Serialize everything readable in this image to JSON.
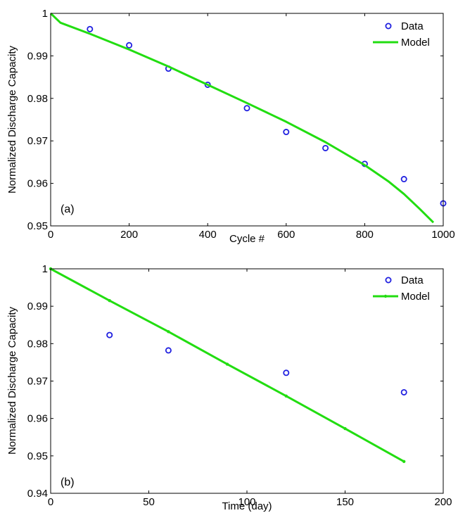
{
  "chart_data": [
    {
      "type": "line",
      "panel_label": "(a)",
      "xlabel": "Cycle #",
      "ylabel": "Normalized Discharge Capacity",
      "xlim": [
        0,
        1000
      ],
      "ylim": [
        0.95,
        1.0
      ],
      "x_ticks": [
        "0",
        "200",
        "400",
        "600",
        "800",
        "1000"
      ],
      "y_ticks": [
        "0.95",
        "0.96",
        "0.97",
        "0.98",
        "0.99",
        "1"
      ],
      "grid": false,
      "legend_position": "top-right",
      "legend": [
        "Data",
        "Model"
      ],
      "series": [
        {
          "name": "Data",
          "marker": "circle",
          "color": "#2020e0",
          "x": [
            100,
            200,
            300,
            400,
            500,
            600,
            700,
            800,
            900,
            1000
          ],
          "y": [
            0.9963,
            0.9925,
            0.987,
            0.9832,
            0.9777,
            0.9721,
            0.9683,
            0.9646,
            0.961,
            0.9553
          ]
        },
        {
          "name": "Model",
          "line": "solid",
          "color": "#22dd11",
          "x": [
            0,
            25,
            100,
            200,
            300,
            400,
            500,
            600,
            700,
            800,
            860,
            900,
            940,
            975
          ],
          "y": [
            1.0,
            0.9978,
            0.9952,
            0.9915,
            0.9875,
            0.9832,
            0.9789,
            0.9745,
            0.9697,
            0.9643,
            0.9605,
            0.9575,
            0.954,
            0.9508
          ]
        }
      ]
    },
    {
      "type": "line",
      "panel_label": "(b)",
      "xlabel": "Time (day)",
      "ylabel": "Normalized Discharge Capacity",
      "xlim": [
        0,
        200
      ],
      "ylim": [
        0.94,
        1.0
      ],
      "x_ticks": [
        "0",
        "50",
        "100",
        "150",
        "200"
      ],
      "y_ticks": [
        "0.94",
        "0.95",
        "0.96",
        "0.97",
        "0.98",
        "0.99",
        "1"
      ],
      "grid": false,
      "legend_position": "top-right",
      "legend": [
        "Data",
        "Model"
      ],
      "series": [
        {
          "name": "Data",
          "marker": "circle",
          "color": "#2020e0",
          "x": [
            30,
            60,
            120,
            180
          ],
          "y": [
            0.9823,
            0.9782,
            0.9722,
            0.967
          ]
        },
        {
          "name": "Model",
          "line": "solid",
          "marker": "dot",
          "color": "#22dd11",
          "x": [
            0,
            30,
            60,
            90,
            120,
            150,
            180
          ],
          "y": [
            1.0,
            0.9915,
            0.9832,
            0.9745,
            0.966,
            0.9573,
            0.9485
          ]
        }
      ]
    }
  ]
}
